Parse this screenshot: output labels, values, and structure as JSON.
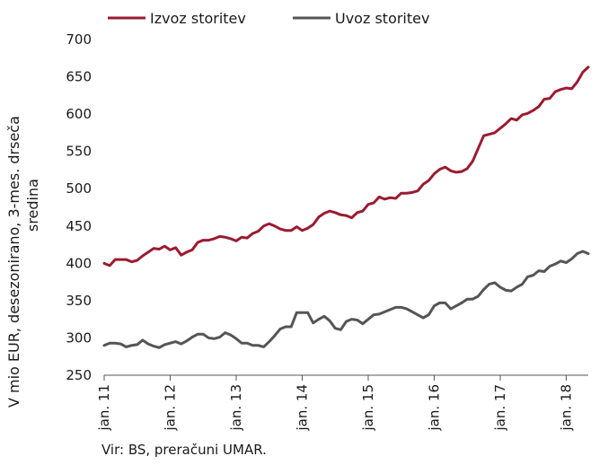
{
  "chart_data": {
    "type": "line",
    "xlabel": "",
    "ylabel_lines": [
      "V mio EUR, desezonirano, 3-mes. drseča",
      "sredina"
    ],
    "ylim": [
      250,
      700
    ],
    "yticks": [
      250,
      300,
      350,
      400,
      450,
      500,
      550,
      600,
      650,
      700
    ],
    "xticks": [
      {
        "label": "jan. 11",
        "index": 0
      },
      {
        "label": "jan. 12",
        "index": 12
      },
      {
        "label": "jan. 13",
        "index": 24
      },
      {
        "label": "jan. 14",
        "index": 36
      },
      {
        "label": "jan. 15",
        "index": 48
      },
      {
        "label": "jan. 16",
        "index": 60
      },
      {
        "label": "jan. 17",
        "index": 72
      },
      {
        "label": "jan. 18",
        "index": 84
      }
    ],
    "x_start": "jan. 11",
    "grid": false,
    "legend_position": "top",
    "series": [
      {
        "name": "Izvoz storitev",
        "color": "#9b1b30",
        "values": [
          400,
          397,
          405,
          405,
          405,
          402,
          404,
          410,
          415,
          420,
          419,
          423,
          418,
          421,
          411,
          415,
          418,
          428,
          431,
          431,
          433,
          436,
          435,
          433,
          430,
          435,
          434,
          440,
          443,
          450,
          453,
          450,
          446,
          444,
          444,
          449,
          444,
          447,
          452,
          462,
          467,
          470,
          468,
          465,
          464,
          461,
          468,
          470,
          479,
          481,
          489,
          486,
          488,
          487,
          494,
          494,
          495,
          497,
          506,
          511,
          520,
          526,
          529,
          524,
          522,
          523,
          527,
          537,
          554,
          571,
          573,
          575,
          581,
          587,
          594,
          592,
          599,
          601,
          605,
          610,
          620,
          621,
          630,
          633,
          635,
          634,
          643,
          656,
          663
        ]
      },
      {
        "name": "Uvoz storitev",
        "color": "#555555",
        "values": [
          290,
          293,
          293,
          292,
          288,
          290,
          291,
          297,
          292,
          289,
          287,
          291,
          293,
          295,
          292,
          296,
          301,
          305,
          305,
          300,
          299,
          301,
          307,
          304,
          299,
          293,
          293,
          290,
          290,
          288,
          295,
          303,
          312,
          315,
          315,
          334,
          334,
          334,
          320,
          325,
          329,
          323,
          313,
          311,
          322,
          325,
          324,
          319,
          325,
          331,
          332,
          335,
          338,
          341,
          341,
          339,
          335,
          331,
          327,
          331,
          343,
          347,
          347,
          339,
          343,
          347,
          352,
          352,
          356,
          365,
          372,
          374,
          368,
          364,
          363,
          368,
          372,
          382,
          384,
          390,
          389,
          396,
          399,
          403,
          401,
          406,
          413,
          416,
          413
        ]
      }
    ]
  },
  "source_note": "Vir: BS, preračuni UMAR."
}
